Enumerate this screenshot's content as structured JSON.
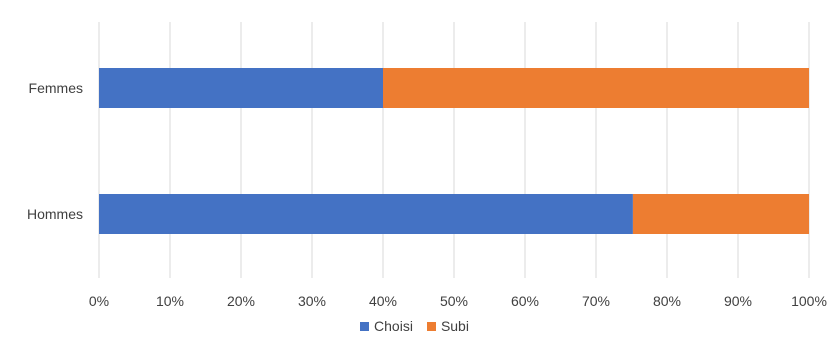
{
  "chart_data": {
    "type": "bar",
    "orientation": "horizontal",
    "stacked": "percent",
    "title": "",
    "xlabel": "",
    "ylabel": "",
    "categories": [
      "Femmes",
      "Hommes"
    ],
    "series": [
      {
        "name": "Choisi",
        "values": [
          40,
          75.2
        ],
        "color": "#4472C4"
      },
      {
        "name": "Subi",
        "values": [
          60,
          24.8
        ],
        "color": "#ED7D31"
      }
    ],
    "xlim": [
      0,
      100
    ],
    "xticks": [
      "0%",
      "10%",
      "20%",
      "30%",
      "40%",
      "50%",
      "60%",
      "70%",
      "80%",
      "90%",
      "100%"
    ],
    "grid": true,
    "legend": "bottom"
  }
}
